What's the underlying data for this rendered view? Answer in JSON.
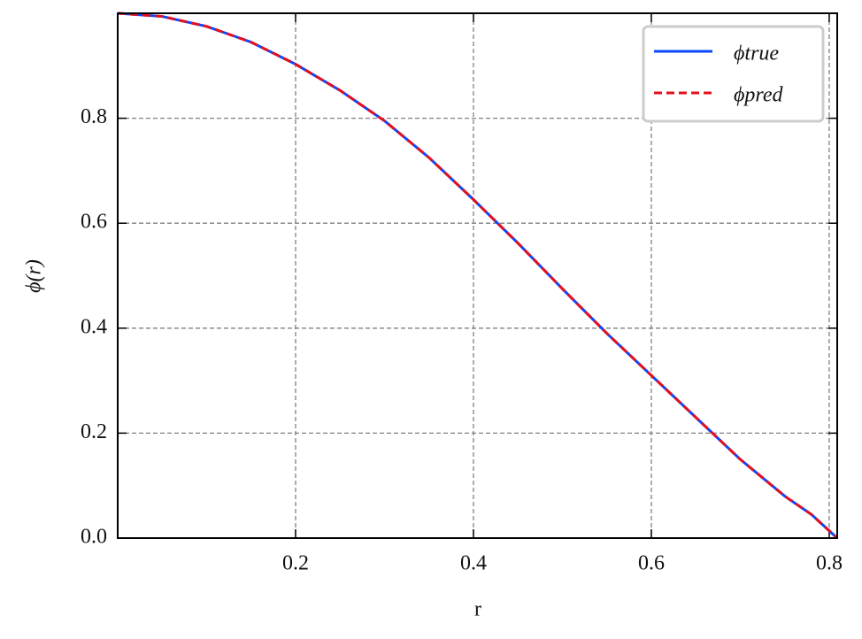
{
  "chart_data": {
    "type": "line",
    "x_label": "r",
    "y_label": "ϕ(r)",
    "x": [
      0,
      0.05,
      0.1,
      0.15,
      0.2,
      0.25,
      0.3,
      0.35,
      0.4,
      0.45,
      0.5,
      0.55,
      0.6,
      0.65,
      0.7,
      0.75,
      0.78,
      0.809
    ],
    "series": [
      {
        "name": "ϕtrue",
        "color": "#0a47ff",
        "dash": false,
        "values": [
          1.0,
          0.994,
          0.975,
          0.945,
          0.903,
          0.853,
          0.795,
          0.725,
          0.645,
          0.562,
          0.475,
          0.39,
          0.31,
          0.23,
          0.15,
          0.08,
          0.045,
          0.0
        ]
      },
      {
        "name": "ϕpred",
        "color": "#e3101e",
        "dash": true,
        "values": [
          1.0,
          0.994,
          0.975,
          0.945,
          0.903,
          0.853,
          0.795,
          0.725,
          0.645,
          0.562,
          0.475,
          0.39,
          0.31,
          0.23,
          0.15,
          0.08,
          0.045,
          0.0
        ]
      }
    ],
    "xlim": [
      0,
      0.809
    ],
    "ylim": [
      0,
      1.0
    ],
    "xticks": [
      0.2,
      0.4,
      0.6,
      0.8
    ],
    "yticks": [
      {
        "value": 0,
        "label": "0.0"
      },
      0.2,
      0.4,
      0.6,
      0.8
    ],
    "grid": true,
    "legend": "upper-right"
  }
}
